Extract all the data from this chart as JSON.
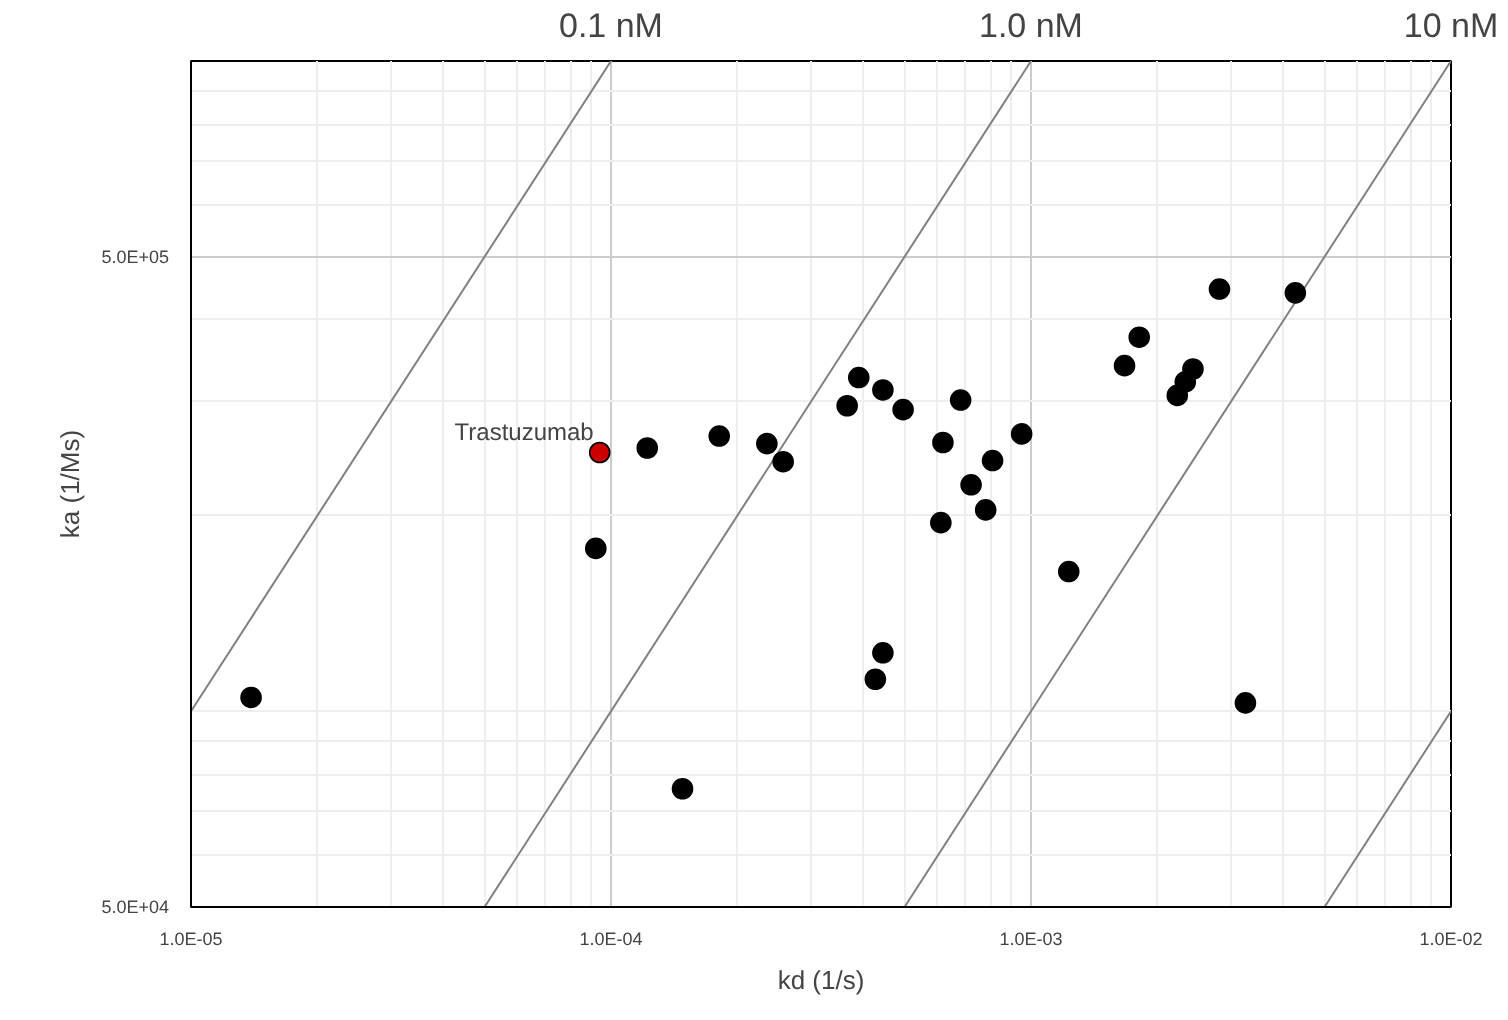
{
  "chart_data": {
    "type": "scatter",
    "xlabel": "kd (1/s)",
    "ylabel": "ka (1/Ms)",
    "log": "xy",
    "grid": true,
    "marker": "circle",
    "xlim": [
      1e-05,
      0.01
    ],
    "ylim": [
      50000.0,
      1000000.0
    ],
    "xticks": [
      {
        "value": 1e-05,
        "label": "1.0E-05"
      },
      {
        "value": 0.0001,
        "label": "1.0E-04"
      },
      {
        "value": 0.001,
        "label": "1.0E-03"
      },
      {
        "value": 0.01,
        "label": "1.0E-02"
      }
    ],
    "yticks": [
      {
        "value": 50000.0,
        "label": "5.0E+04"
      },
      {
        "value": 500000.0,
        "label": "5.0E+05"
      }
    ],
    "annotations": [
      {
        "text": "Trastuzumab",
        "x": 9.4e-05,
        "y": 250000.0
      }
    ],
    "series": [
      {
        "color": "#000000",
        "colors": [
          "#000000",
          "#cc0000",
          "#000000",
          "#000000",
          "#000000",
          "#000000",
          "#000000",
          "#000000",
          "#000000",
          "#000000",
          "#000000",
          "#000000",
          "#000000",
          "#000000",
          "#000000",
          "#000000",
          "#000000",
          "#000000",
          "#000000",
          "#000000",
          "#000000",
          "#000000",
          "#000000",
          "#000000",
          "#000000",
          "#000000",
          "#000000",
          "#000000",
          "#000000",
          "#000000"
        ],
        "x": [
          1.39e-05,
          9.4e-05,
          9.2e-05,
          0.000122,
          0.000148,
          0.000181,
          0.000235,
          0.000257,
          0.000365,
          0.000389,
          0.000444,
          0.000496,
          0.000426,
          0.000444,
          0.000617,
          0.00061,
          0.00068,
          0.00072,
          0.00078,
          0.00081,
          0.00095,
          0.00123,
          0.00167,
          0.00181,
          0.00223,
          0.00233,
          0.00243,
          0.00281,
          0.00324,
          0.00426
        ],
        "values": [
          105000.0,
          250000.0,
          178000.0,
          254000.0,
          76000.0,
          265000.0,
          258000.0,
          242000.0,
          295000.0,
          326000.0,
          312000.0,
          291000.0,
          112000.0,
          123000.0,
          259000.0,
          195000.0,
          301000.0,
          223000.0,
          204000.0,
          243000.0,
          267000.0,
          164000.0,
          340000.0,
          376000.0,
          306000.0,
          321000.0,
          336000.0,
          446000.0,
          103000.0,
          440000.0
        ]
      },
      {
        "type": "line",
        "marker": "none",
        "name": "0.1 nM",
        "color": "#808080",
        "x": [
          1e-05,
          0.0001
        ],
        "values": [
          100000.0,
          1000000.0
        ]
      },
      {
        "type": "line",
        "marker": "none",
        "name": "1.0 nM",
        "color": "#808080",
        "x": [
          5e-05,
          0.001
        ],
        "values": [
          50000.0,
          1000000.0
        ]
      },
      {
        "type": "line",
        "marker": "none",
        "name": "10 nM",
        "color": "#808080",
        "x": [
          0.0005,
          0.01
        ],
        "values": [
          50000.0,
          1000000.0
        ]
      },
      {
        "type": "line",
        "marker": "none",
        "color": "#808080",
        "x": [
          0.005,
          0.01
        ],
        "values": [
          50000.0,
          100000.0
        ]
      }
    ]
  }
}
